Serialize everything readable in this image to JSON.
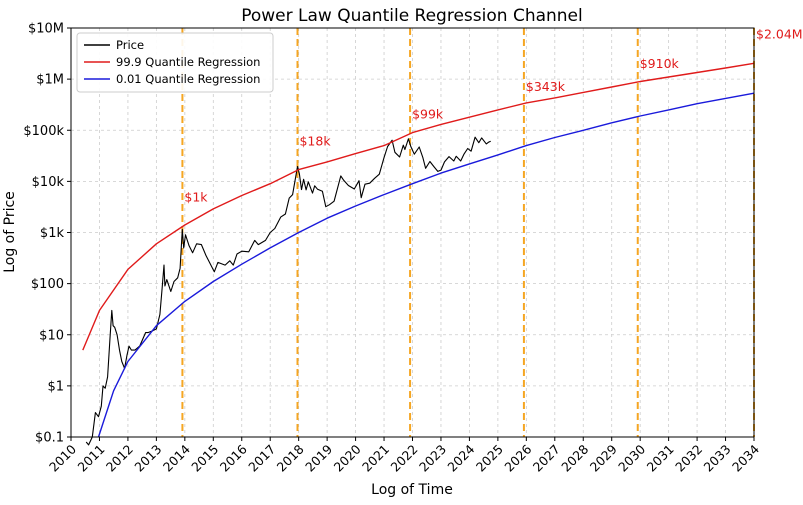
{
  "chart_data": {
    "type": "line",
    "title": "Power Law Quantile Regression Channel",
    "xlabel": "Log of Time",
    "ylabel": "Log of Price",
    "y_scale": "log",
    "ylim": [
      0.1,
      10000000
    ],
    "xlim": [
      "2010-01-01",
      "2034-01-01"
    ],
    "x_ticks": [
      "2010",
      "2011",
      "2012",
      "2013",
      "2014",
      "2015",
      "2016",
      "2017",
      "2018",
      "2019",
      "2020",
      "2021",
      "2022",
      "2023",
      "2024",
      "2025",
      "2026",
      "2027",
      "2028",
      "2029",
      "2030",
      "2031",
      "2032",
      "2033",
      "2034"
    ],
    "y_ticks": [
      {
        "value": 0.1,
        "label": "$0.1"
      },
      {
        "value": 1,
        "label": "$1"
      },
      {
        "value": 10,
        "label": "$10"
      },
      {
        "value": 100,
        "label": "$100"
      },
      {
        "value": 1000,
        "label": "$1k"
      },
      {
        "value": 10000,
        "label": "$10k"
      },
      {
        "value": 100000,
        "label": "$100k"
      },
      {
        "value": 1000000,
        "label": "$1M"
      },
      {
        "value": 10000000,
        "label": "$10M"
      }
    ],
    "grid": true,
    "legend_position": "top-left",
    "series": [
      {
        "name": "Price",
        "color": "#000000",
        "points": [
          [
            "2010-07-15",
            0.08
          ],
          [
            "2010-08-15",
            0.07
          ],
          [
            "2010-10-01",
            0.1
          ],
          [
            "2010-11-10",
            0.3
          ],
          [
            "2010-12-20",
            0.25
          ],
          [
            "2011-01-25",
            0.4
          ],
          [
            "2011-02-15",
            1.0
          ],
          [
            "2011-03-15",
            0.9
          ],
          [
            "2011-04-15",
            1.5
          ],
          [
            "2011-05-15",
            8
          ],
          [
            "2011-06-08",
            30
          ],
          [
            "2011-06-25",
            15
          ],
          [
            "2011-07-15",
            14
          ],
          [
            "2011-08-15",
            10
          ],
          [
            "2011-09-15",
            5
          ],
          [
            "2011-10-15",
            3
          ],
          [
            "2011-11-20",
            2.2
          ],
          [
            "2011-12-20",
            4
          ],
          [
            "2012-01-15",
            6
          ],
          [
            "2012-02-15",
            5
          ],
          [
            "2012-04-01",
            5
          ],
          [
            "2012-06-01",
            6
          ],
          [
            "2012-08-15",
            11
          ],
          [
            "2012-09-15",
            11
          ],
          [
            "2012-11-15",
            12
          ],
          [
            "2013-01-01",
            13
          ],
          [
            "2013-02-15",
            25
          ],
          [
            "2013-03-15",
            80
          ],
          [
            "2013-04-09",
            230
          ],
          [
            "2013-04-20",
            90
          ],
          [
            "2013-05-15",
            120
          ],
          [
            "2013-07-05",
            70
          ],
          [
            "2013-08-15",
            110
          ],
          [
            "2013-10-01",
            130
          ],
          [
            "2013-11-01",
            200
          ],
          [
            "2013-11-30",
            1150
          ],
          [
            "2013-12-18",
            500
          ],
          [
            "2014-01-10",
            900
          ],
          [
            "2014-02-25",
            550
          ],
          [
            "2014-04-10",
            400
          ],
          [
            "2014-06-01",
            600
          ],
          [
            "2014-08-01",
            580
          ],
          [
            "2014-10-01",
            350
          ],
          [
            "2015-01-14",
            170
          ],
          [
            "2015-03-01",
            260
          ],
          [
            "2015-06-01",
            230
          ],
          [
            "2015-08-01",
            280
          ],
          [
            "2015-09-15",
            230
          ],
          [
            "2015-11-01",
            380
          ],
          [
            "2016-01-01",
            430
          ],
          [
            "2016-04-01",
            420
          ],
          [
            "2016-06-15",
            700
          ],
          [
            "2016-08-01",
            580
          ],
          [
            "2016-11-01",
            700
          ],
          [
            "2017-01-01",
            1000
          ],
          [
            "2017-03-01",
            1200
          ],
          [
            "2017-05-15",
            2000
          ],
          [
            "2017-07-15",
            2300
          ],
          [
            "2017-09-01",
            4700
          ],
          [
            "2017-10-15",
            5500
          ],
          [
            "2017-12-17",
            19500
          ],
          [
            "2018-01-10",
            14000
          ],
          [
            "2018-02-06",
            6900
          ],
          [
            "2018-03-05",
            11000
          ],
          [
            "2018-04-06",
            6800
          ],
          [
            "2018-05-05",
            9800
          ],
          [
            "2018-06-28",
            5900
          ],
          [
            "2018-07-25",
            8200
          ],
          [
            "2018-09-01",
            7000
          ],
          [
            "2018-11-01",
            6400
          ],
          [
            "2018-12-15",
            3200
          ],
          [
            "2019-02-01",
            3500
          ],
          [
            "2019-04-01",
            4100
          ],
          [
            "2019-06-26",
            12800
          ],
          [
            "2019-08-01",
            10500
          ],
          [
            "2019-10-01",
            8300
          ],
          [
            "2019-12-15",
            7100
          ],
          [
            "2020-02-14",
            10300
          ],
          [
            "2020-03-13",
            4800
          ],
          [
            "2020-05-01",
            8800
          ],
          [
            "2020-07-01",
            9200
          ],
          [
            "2020-09-01",
            11500
          ],
          [
            "2020-11-01",
            13800
          ],
          [
            "2020-12-31",
            29000
          ],
          [
            "2021-02-15",
            48000
          ],
          [
            "2021-04-14",
            64000
          ],
          [
            "2021-05-20",
            37000
          ],
          [
            "2021-07-20",
            30000
          ],
          [
            "2021-09-05",
            51000
          ],
          [
            "2021-09-25",
            42000
          ],
          [
            "2021-11-10",
            68000
          ],
          [
            "2021-12-10",
            48000
          ],
          [
            "2022-01-24",
            34000
          ],
          [
            "2022-03-28",
            47000
          ],
          [
            "2022-05-15",
            29000
          ],
          [
            "2022-06-18",
            18000
          ],
          [
            "2022-08-12",
            24500
          ],
          [
            "2022-10-01",
            19500
          ],
          [
            "2022-11-21",
            15700
          ],
          [
            "2023-01-01",
            16600
          ],
          [
            "2023-02-15",
            24000
          ],
          [
            "2023-04-14",
            30500
          ],
          [
            "2023-06-15",
            25000
          ],
          [
            "2023-07-15",
            31000
          ],
          [
            "2023-09-11",
            25000
          ],
          [
            "2023-10-25",
            34500
          ],
          [
            "2023-12-10",
            44000
          ],
          [
            "2024-01-23",
            39000
          ],
          [
            "2024-03-14",
            73000
          ],
          [
            "2024-05-01",
            57000
          ],
          [
            "2024-06-07",
            71000
          ],
          [
            "2024-08-05",
            54000
          ],
          [
            "2024-09-01",
            58000
          ],
          [
            "2024-10-01",
            61000
          ]
        ]
      },
      {
        "name": "99.9 Quantile Regression",
        "color": "#e01b1b",
        "points": [
          [
            "2010-06-01",
            5
          ],
          [
            "2011-01-01",
            30
          ],
          [
            "2012-01-01",
            190
          ],
          [
            "2013-01-01",
            600
          ],
          [
            "2014-01-01",
            1400
          ],
          [
            "2015-01-01",
            2900
          ],
          [
            "2016-01-01",
            5300
          ],
          [
            "2017-01-01",
            9000
          ],
          [
            "2018-01-01",
            17000
          ],
          [
            "2019-01-01",
            24000
          ],
          [
            "2020-01-01",
            35000
          ],
          [
            "2021-01-01",
            50000
          ],
          [
            "2022-01-01",
            90000
          ],
          [
            "2023-01-01",
            130000
          ],
          [
            "2024-01-01",
            180000
          ],
          [
            "2025-01-01",
            250000
          ],
          [
            "2026-01-01",
            343000
          ],
          [
            "2027-01-01",
            430000
          ],
          [
            "2028-01-01",
            550000
          ],
          [
            "2029-01-01",
            700000
          ],
          [
            "2030-01-01",
            900000
          ],
          [
            "2031-01-01",
            1100000
          ],
          [
            "2032-01-01",
            1350000
          ],
          [
            "2033-01-01",
            1650000
          ],
          [
            "2034-01-01",
            2040000
          ]
        ]
      },
      {
        "name": "0.01 Quantile Regression",
        "color": "#1a1adb",
        "points": [
          [
            "2010-12-20",
            0.1
          ],
          [
            "2011-07-01",
            0.8
          ],
          [
            "2012-01-01",
            3
          ],
          [
            "2013-01-01",
            15
          ],
          [
            "2014-01-01",
            45
          ],
          [
            "2015-01-01",
            110
          ],
          [
            "2016-01-01",
            240
          ],
          [
            "2017-01-01",
            500
          ],
          [
            "2018-01-01",
            1000
          ],
          [
            "2019-01-01",
            1900
          ],
          [
            "2020-01-01",
            3300
          ],
          [
            "2021-01-01",
            5500
          ],
          [
            "2022-01-01",
            9000
          ],
          [
            "2023-01-01",
            14500
          ],
          [
            "2024-01-01",
            22000
          ],
          [
            "2025-01-01",
            33000
          ],
          [
            "2026-01-01",
            50000
          ],
          [
            "2027-01-01",
            72000
          ],
          [
            "2028-01-01",
            100000
          ],
          [
            "2029-01-01",
            140000
          ],
          [
            "2030-01-01",
            190000
          ],
          [
            "2031-01-01",
            250000
          ],
          [
            "2032-01-01",
            330000
          ],
          [
            "2033-01-01",
            420000
          ],
          [
            "2034-01-01",
            530000
          ]
        ]
      }
    ],
    "vlines": [
      {
        "x": "2013-12-01",
        "label": "$1k",
        "label_y": 4000
      },
      {
        "x": "2017-12-17",
        "label": "$18k",
        "label_y": 50000
      },
      {
        "x": "2021-12-01",
        "label": "$99k",
        "label_y": 170000
      },
      {
        "x": "2025-12-01",
        "label": "$343k",
        "label_y": 580000
      },
      {
        "x": "2029-12-01",
        "label": "$910k",
        "label_y": 1650000
      },
      {
        "x": "2034-01-01",
        "label": "$2.04M",
        "label_y": 6200000
      }
    ],
    "colors": {
      "vline": "#f5a623",
      "annotation": "#e01b1b",
      "grid": "#cccccc"
    }
  }
}
